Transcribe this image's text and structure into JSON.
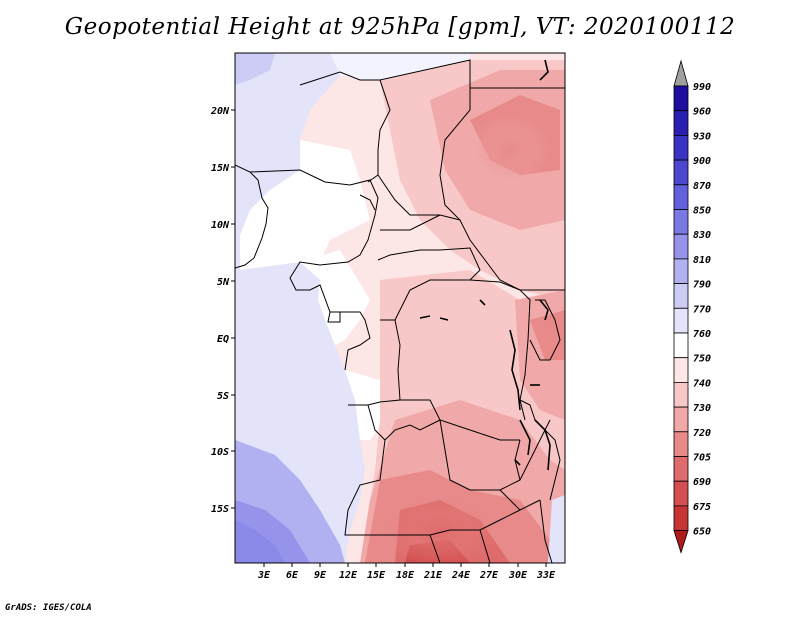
{
  "title": "Geopotential Height at 925hPa [gpm], VT: 2020100112",
  "credit": "GrADS: IGES/COLA",
  "lat_labels": [
    "20N",
    "15N",
    "10N",
    "5N",
    "EQ",
    "5S",
    "10S",
    "15S"
  ],
  "lon_labels": [
    "3E",
    "6E",
    "9E",
    "12E",
    "15E",
    "18E",
    "21E",
    "24E",
    "27E",
    "30E",
    "33E"
  ],
  "colorbar": {
    "levels": [
      "990",
      "960",
      "930",
      "900",
      "870",
      "850",
      "830",
      "810",
      "790",
      "770",
      "760",
      "750",
      "740",
      "730",
      "720",
      "705",
      "690",
      "675",
      "650"
    ],
    "colors": [
      "#1d0ea0",
      "#2a1fb0",
      "#3a32c2",
      "#4d47cf",
      "#6260da",
      "#7a78e2",
      "#9593ea",
      "#b1b0f0",
      "#cdccf5",
      "#e3e3fa",
      "#ffffff",
      "#fde6e6",
      "#f8c8c8",
      "#f0a8a8",
      "#e88a8a",
      "#df6c6c",
      "#d45050",
      "#c63434",
      "#b01a1a"
    ],
    "top_arrow_color": "#a0a0a0",
    "bottom_arrow_color": "#b01a1a"
  }
}
